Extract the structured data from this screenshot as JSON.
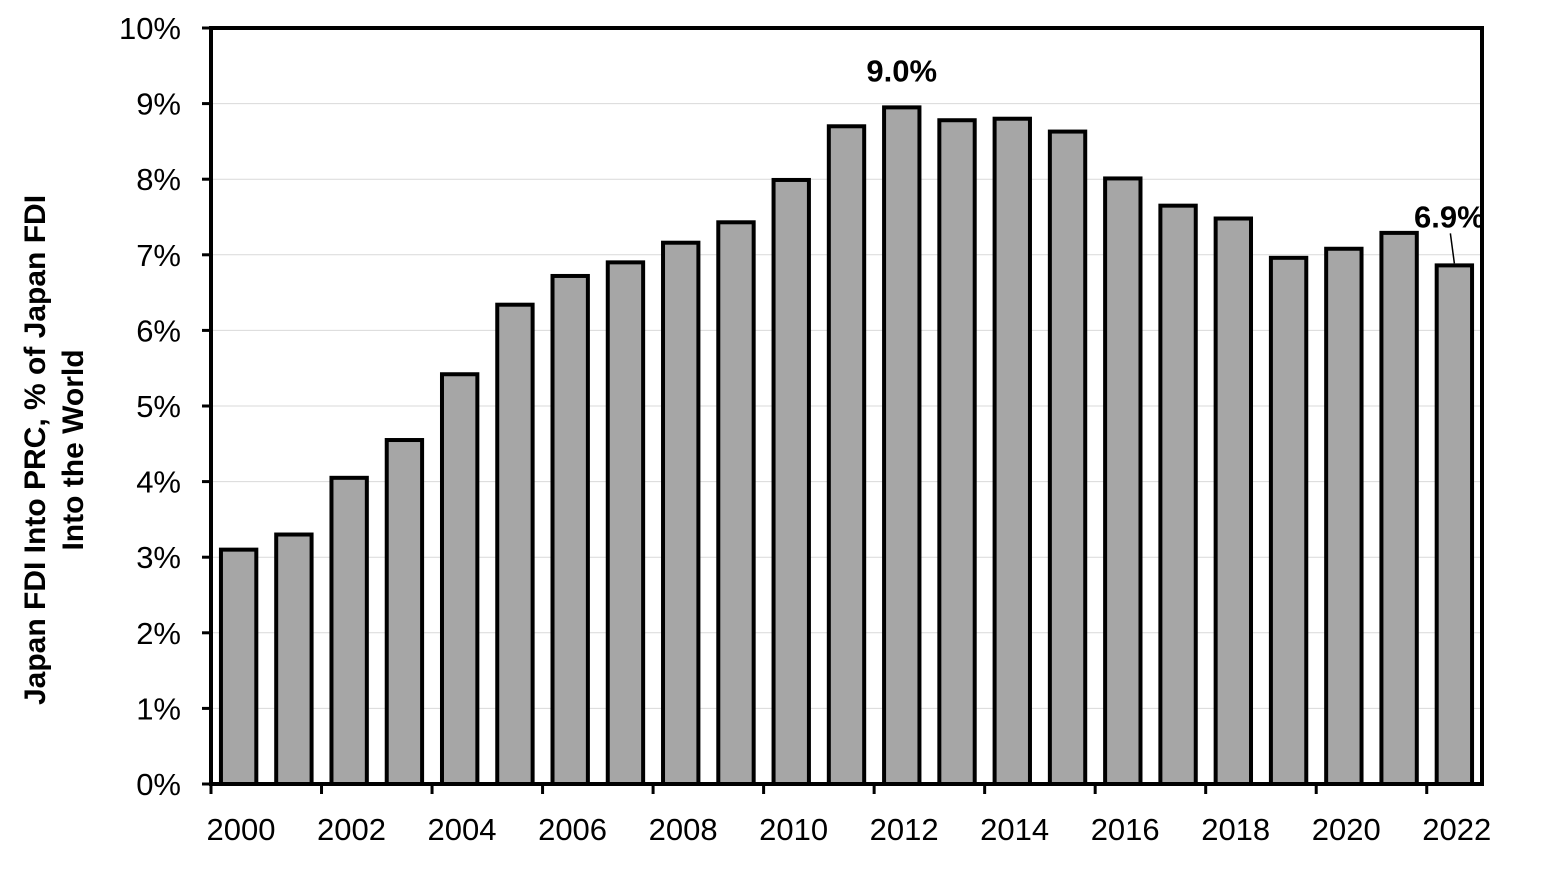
{
  "chart_data": {
    "type": "bar",
    "title": "",
    "xlabel": "",
    "ylabel_lines": [
      "Japan FDI Into PRC, % of Japan FDI",
      "Into the World"
    ],
    "categories": [
      "2000",
      "2001",
      "2002",
      "2003",
      "2004",
      "2005",
      "2006",
      "2007",
      "2008",
      "2009",
      "2010",
      "2011",
      "2012",
      "2013",
      "2014",
      "2015",
      "2016",
      "2017",
      "2018",
      "2019",
      "2020",
      "2021",
      "2022"
    ],
    "x_tick_labels": [
      "2000",
      "2002",
      "2004",
      "2006",
      "2008",
      "2010",
      "2012",
      "2014",
      "2016",
      "2018",
      "2020",
      "2022"
    ],
    "values": [
      3.1,
      3.3,
      4.05,
      4.55,
      5.42,
      6.34,
      6.72,
      6.9,
      7.16,
      7.43,
      7.99,
      8.7,
      8.95,
      8.78,
      8.8,
      8.63,
      8.01,
      7.65,
      7.48,
      6.96,
      7.08,
      7.29,
      6.86
    ],
    "y_tick_labels": [
      "0%",
      "1%",
      "2%",
      "3%",
      "4%",
      "5%",
      "6%",
      "7%",
      "8%",
      "9%",
      "10%"
    ],
    "ylim": [
      0,
      10
    ],
    "grid": "horizontal",
    "bar_color": "#a6a6a6",
    "bar_edge_color": "#000000",
    "annotations": [
      {
        "category": "2012",
        "text": "9.0%"
      },
      {
        "category": "2022",
        "text": "6.9%"
      }
    ]
  }
}
